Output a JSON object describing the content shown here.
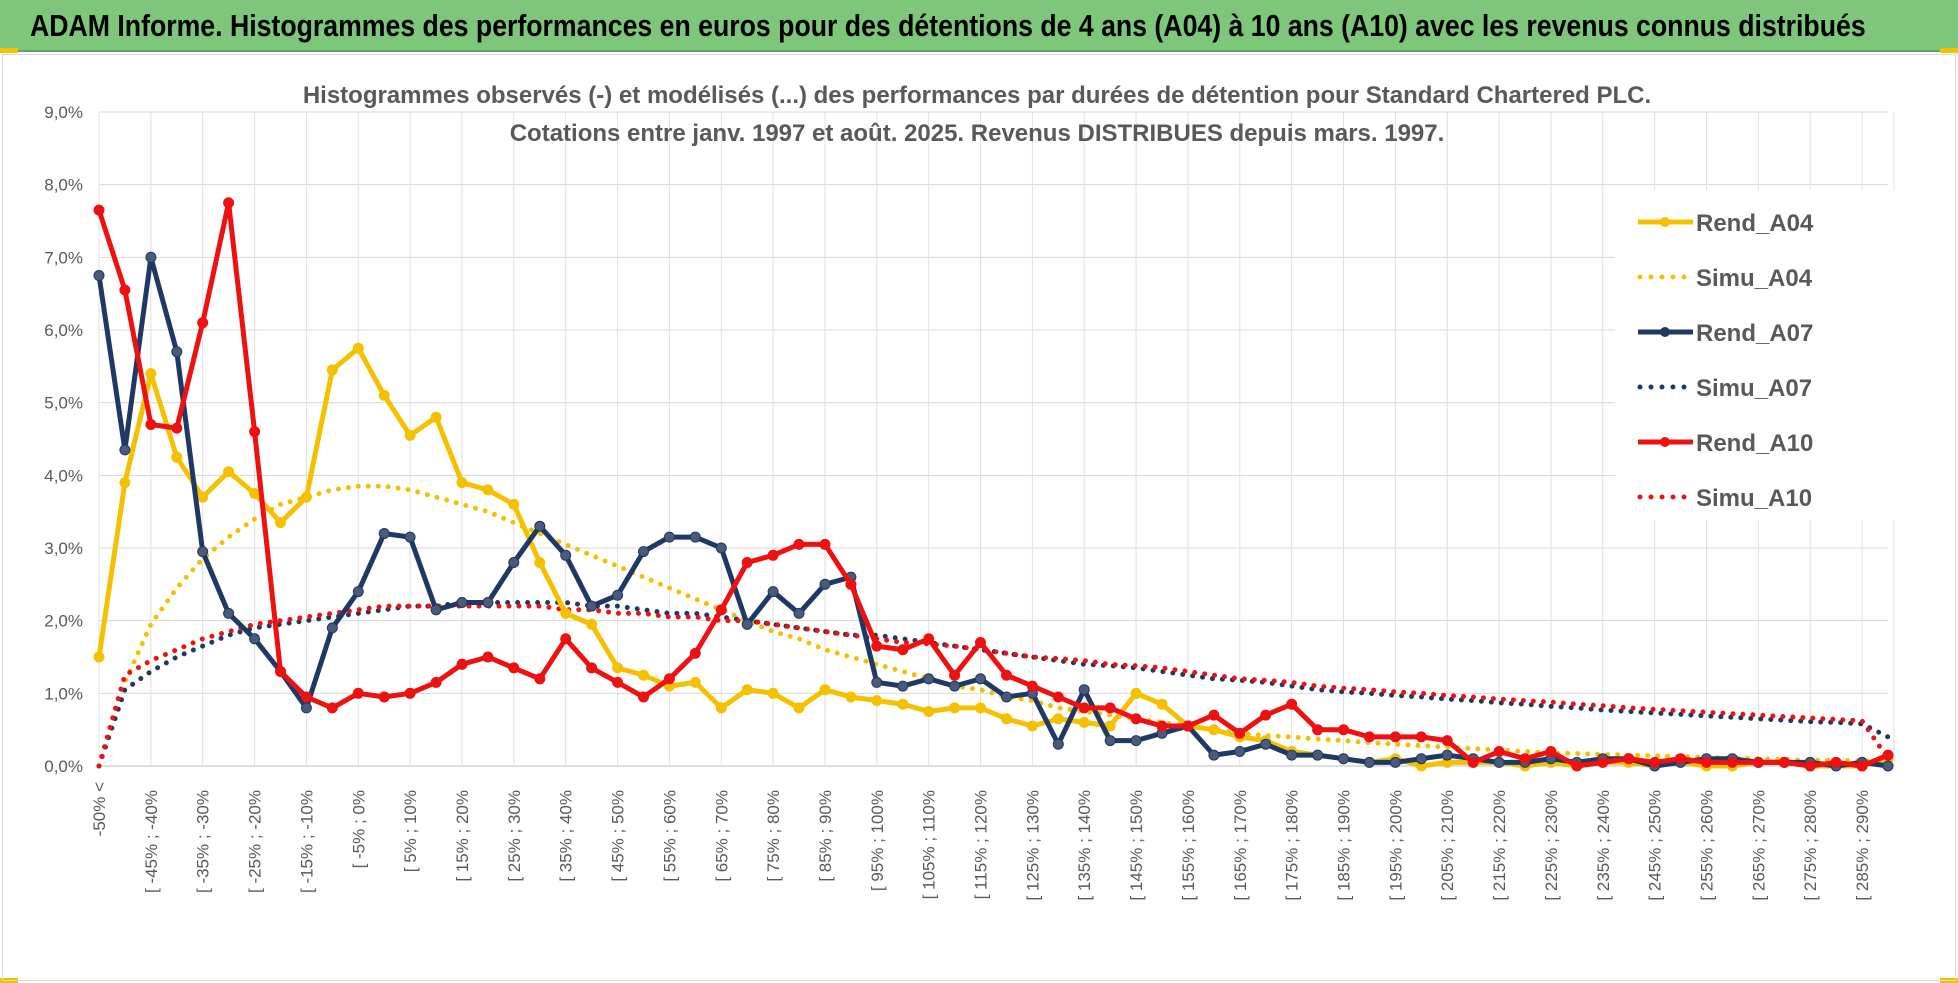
{
  "header": {
    "title": "ADAM Informe. Histogrammes des performances en euros pour des détentions de 4 ans (A04) à 10 ans (A10) avec les revenus connus distribués"
  },
  "chart_data": {
    "type": "line",
    "title_lines": [
      "Histogrammes observés (-) et modélisés (...) des performances par durées de détention pour Standard Chartered PLC.",
      "Cotations entre janv. 1997 et août. 2025. Revenus DISTRIBUES depuis mars. 1997."
    ],
    "ylim": [
      0,
      9
    ],
    "yticks": [
      "0,0%",
      "1,0%",
      "2,0%",
      "3,0%",
      "4,0%",
      "5,0%",
      "6,0%",
      "7,0%",
      "8,0%",
      "9,0%"
    ],
    "xtick_labels": [
      "-50% <",
      "[ -45% ; -40%",
      "[ -35% ; -30%",
      "[ -25% ; -20%",
      "[ -15% ; -10%",
      "[ -5% ; 0%",
      "[ 5% ; 10%",
      "[ 15% ; 20%",
      "[ 25% ; 30%",
      "[ 35% ; 40%",
      "[ 45% ; 50%",
      "[ 55% ; 60%",
      "[ 65% ; 70%",
      "[ 75% ; 80%",
      "[ 85% ; 90%",
      "[ 95% ; 100%",
      "[ 105% ; 110%",
      "[ 115% ; 120%",
      "[ 125% ; 130%",
      "[ 135% ; 140%",
      "[ 145% ; 150%",
      "[ 155% ; 160%",
      "[ 165% ; 170%",
      "[ 175% ; 180%",
      "[ 185% ; 190%",
      "[ 195% ; 200%",
      "[ 205% ; 210%",
      "[ 215% ; 220%",
      "[ 225% ; 230%",
      "[ 235% ; 240%",
      "[ 245% ; 250%",
      "[ 255% ; 260%",
      "[ 265% ; 270%",
      "[ 275% ; 280%",
      "[ 285% ; 290%"
    ],
    "x_categories_count": 70,
    "legend_position": "right",
    "grid": true,
    "series": [
      {
        "name": "Rend_A04",
        "color": "#f5c000",
        "style": "solid",
        "markers": true,
        "values": [
          1.5,
          3.9,
          5.4,
          4.25,
          3.7,
          4.05,
          3.75,
          3.35,
          3.7,
          5.45,
          5.75,
          5.1,
          4.55,
          4.8,
          3.9,
          3.8,
          3.6,
          2.8,
          2.1,
          1.95,
          1.35,
          1.25,
          1.1,
          1.15,
          0.8,
          1.05,
          1.0,
          0.8,
          1.05,
          0.95,
          0.9,
          0.85,
          0.75,
          0.8,
          0.8,
          0.65,
          0.55,
          0.65,
          0.6,
          0.55,
          1.0,
          0.85,
          0.55,
          0.5,
          0.4,
          0.35,
          0.2,
          0.15,
          0.1,
          0.05,
          0.1,
          0.0,
          0.05,
          0.05,
          0.05,
          0.0,
          0.05,
          0.0,
          0.05,
          0.05,
          0.0,
          0.05,
          0.0,
          0.0,
          0.05,
          0.05,
          0.0,
          0.0,
          0.0,
          0.1
        ]
      },
      {
        "name": "Simu_A04",
        "color": "#f5c000",
        "style": "dotted",
        "markers": false,
        "values": [
          0.0,
          1.15,
          1.95,
          2.45,
          2.85,
          3.15,
          3.4,
          3.6,
          3.7,
          3.8,
          3.85,
          3.85,
          3.8,
          3.7,
          3.6,
          3.5,
          3.35,
          3.2,
          3.05,
          2.9,
          2.75,
          2.6,
          2.45,
          2.3,
          2.15,
          2.0,
          1.85,
          1.75,
          1.6,
          1.5,
          1.4,
          1.3,
          1.2,
          1.1,
          1.05,
          0.95,
          0.9,
          0.8,
          0.75,
          0.7,
          0.65,
          0.6,
          0.55,
          0.5,
          0.45,
          0.42,
          0.4,
          0.37,
          0.35,
          0.32,
          0.3,
          0.28,
          0.26,
          0.24,
          0.22,
          0.2,
          0.18,
          0.17,
          0.16,
          0.15,
          0.14,
          0.13,
          0.12,
          0.11,
          0.1,
          0.09,
          0.08,
          0.08,
          0.07,
          0.07
        ]
      },
      {
        "name": "Rend_A07",
        "color": "#1f3864",
        "style": "solid",
        "markers": true,
        "values": [
          6.75,
          4.35,
          7.0,
          5.7,
          2.95,
          2.1,
          1.75,
          1.3,
          0.8,
          1.9,
          2.4,
          3.2,
          3.15,
          2.15,
          2.25,
          2.25,
          2.8,
          3.3,
          2.9,
          2.2,
          2.35,
          2.95,
          3.15,
          3.15,
          3.0,
          1.95,
          2.4,
          2.1,
          2.5,
          2.6,
          1.15,
          1.1,
          1.2,
          1.1,
          1.2,
          0.95,
          1.0,
          0.3,
          1.05,
          0.35,
          0.35,
          0.45,
          0.55,
          0.15,
          0.2,
          0.3,
          0.15,
          0.15,
          0.1,
          0.05,
          0.05,
          0.1,
          0.15,
          0.1,
          0.05,
          0.05,
          0.1,
          0.05,
          0.1,
          0.1,
          0.0,
          0.05,
          0.1,
          0.1,
          0.05,
          0.05,
          0.05,
          0.0,
          0.05,
          0.0
        ]
      },
      {
        "name": "Simu_A07",
        "color": "#1f3864",
        "style": "dotted",
        "markers": false,
        "values": [
          0.0,
          1.05,
          1.3,
          1.5,
          1.65,
          1.8,
          1.9,
          1.95,
          2.0,
          2.05,
          2.1,
          2.15,
          2.2,
          2.2,
          2.25,
          2.25,
          2.25,
          2.25,
          2.25,
          2.2,
          2.2,
          2.15,
          2.1,
          2.1,
          2.05,
          2.0,
          1.95,
          1.9,
          1.85,
          1.8,
          1.8,
          1.75,
          1.7,
          1.65,
          1.6,
          1.55,
          1.5,
          1.45,
          1.4,
          1.38,
          1.35,
          1.3,
          1.25,
          1.2,
          1.18,
          1.15,
          1.1,
          1.05,
          1.02,
          1.0,
          0.97,
          0.95,
          0.92,
          0.9,
          0.87,
          0.85,
          0.82,
          0.8,
          0.77,
          0.75,
          0.73,
          0.71,
          0.69,
          0.67,
          0.65,
          0.63,
          0.61,
          0.6,
          0.58,
          0.4
        ]
      },
      {
        "name": "Rend_A10",
        "color": "#ee1111",
        "style": "solid",
        "markers": true,
        "values": [
          7.65,
          6.55,
          4.7,
          4.65,
          6.1,
          7.75,
          4.6,
          1.3,
          0.95,
          0.8,
          1.0,
          0.95,
          1.0,
          1.15,
          1.4,
          1.5,
          1.35,
          1.2,
          1.75,
          1.35,
          1.15,
          0.95,
          1.2,
          1.55,
          2.15,
          2.8,
          2.9,
          3.05,
          3.05,
          2.5,
          1.65,
          1.6,
          1.75,
          1.25,
          1.7,
          1.25,
          1.1,
          0.95,
          0.8,
          0.8,
          0.65,
          0.55,
          0.55,
          0.7,
          0.45,
          0.7,
          0.85,
          0.5,
          0.5,
          0.4,
          0.4,
          0.4,
          0.35,
          0.05,
          0.2,
          0.1,
          0.2,
          0.0,
          0.05,
          0.1,
          0.05,
          0.1,
          0.05,
          0.05,
          0.05,
          0.05,
          0.0,
          0.05,
          0.0,
          0.15
        ]
      },
      {
        "name": "Simu_A10",
        "color": "#ee1111",
        "style": "dotted",
        "markers": false,
        "values": [
          0.0,
          1.25,
          1.45,
          1.6,
          1.75,
          1.85,
          1.95,
          2.0,
          2.05,
          2.1,
          2.15,
          2.2,
          2.2,
          2.2,
          2.2,
          2.2,
          2.2,
          2.2,
          2.15,
          2.15,
          2.1,
          2.1,
          2.05,
          2.05,
          2.0,
          2.0,
          1.95,
          1.9,
          1.85,
          1.8,
          1.75,
          1.7,
          1.68,
          1.65,
          1.6,
          1.55,
          1.5,
          1.48,
          1.45,
          1.4,
          1.38,
          1.35,
          1.3,
          1.25,
          1.2,
          1.18,
          1.15,
          1.1,
          1.07,
          1.05,
          1.02,
          1.0,
          0.97,
          0.95,
          0.92,
          0.9,
          0.88,
          0.85,
          0.83,
          0.8,
          0.78,
          0.76,
          0.74,
          0.72,
          0.7,
          0.68,
          0.66,
          0.64,
          0.62,
          0.1
        ]
      }
    ]
  }
}
